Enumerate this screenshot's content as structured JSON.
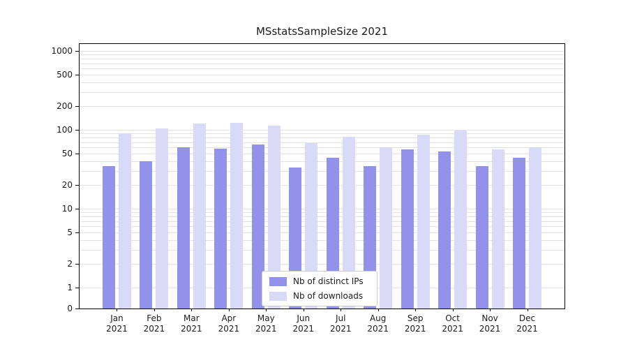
{
  "title": "MSstatsSampleSize 2021",
  "chart_data": {
    "type": "bar",
    "title": "MSstatsSampleSize 2021",
    "categories": [
      "Jan",
      "Feb",
      "Mar",
      "Apr",
      "May",
      "Jun",
      "Jul",
      "Aug",
      "Sep",
      "Oct",
      "Nov",
      "Dec"
    ],
    "category_year": "2021",
    "series": [
      {
        "name": "Nb of distinct IPs",
        "color": "#9292ea",
        "values": [
          35,
          40,
          60,
          58,
          65,
          33,
          44,
          35,
          56,
          53,
          35,
          44
        ]
      },
      {
        "name": "Nb of downloads",
        "color": "#d9d9f8",
        "values": [
          90,
          105,
          120,
          123,
          113,
          68,
          82,
          60,
          86,
          98,
          56,
          60
        ]
      }
    ],
    "yscale": "log-with-zero",
    "yticks": [
      0,
      1,
      2,
      5,
      10,
      20,
      50,
      100,
      200,
      500,
      1000
    ],
    "ylim": [
      0,
      1230
    ],
    "xlabel": "",
    "ylabel": "",
    "grid": "horizontal",
    "legend_position": "lower center",
    "colors": {
      "axis": "#000000",
      "gridline": "#e3e3e3",
      "legend_border": "#cccccc",
      "text": "#1a1a1a"
    }
  }
}
